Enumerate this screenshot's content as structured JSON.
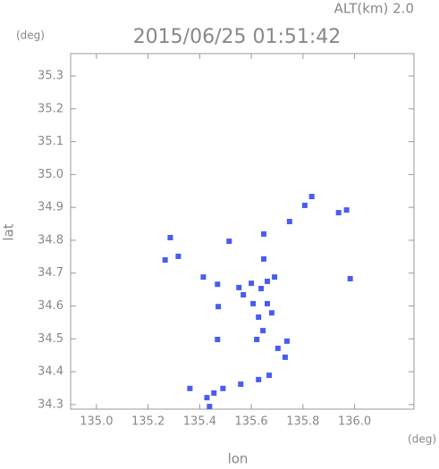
{
  "chart_data": {
    "type": "scatter",
    "title": "2015/06/25 01:51:42",
    "subtitle": "ALT(km) 2.0",
    "y_unit": "(deg)",
    "x_unit": "(deg)",
    "xlabel": "lon",
    "ylabel": "lat",
    "color": "#4a5cf0",
    "x": [
      135.286,
      135.266,
      135.317,
      135.414,
      135.469,
      135.472,
      135.469,
      135.552,
      135.569,
      135.6,
      135.638,
      135.662,
      135.69,
      135.607,
      135.628,
      135.645,
      135.621,
      135.679,
      135.662,
      135.738,
      135.731,
      135.669,
      135.628,
      135.559,
      135.49,
      135.455,
      135.362,
      135.428,
      135.438,
      135.514,
      135.648,
      135.648,
      135.748,
      135.807,
      135.834,
      135.938,
      135.969,
      135.983,
      135.703
    ],
    "values": [
      34.808,
      34.74,
      34.751,
      34.688,
      34.666,
      34.598,
      34.498,
      34.656,
      34.634,
      34.669,
      34.653,
      34.675,
      34.688,
      34.607,
      34.566,
      34.525,
      34.498,
      34.579,
      34.607,
      34.493,
      34.444,
      34.389,
      34.376,
      34.362,
      34.349,
      34.335,
      34.349,
      34.321,
      34.294,
      34.797,
      34.819,
      34.743,
      34.857,
      34.906,
      34.933,
      34.884,
      34.892,
      34.683,
      34.471
    ],
    "xlim": [
      134.9,
      136.23
    ],
    "ylim": [
      34.286,
      35.368
    ],
    "xticks": [
      {
        "value": 135.0,
        "label": "135.0"
      },
      135.2,
      135.4,
      135.6,
      135.8,
      {
        "value": 136.0,
        "label": "136.0"
      }
    ],
    "yticks": [
      {
        "value": 34.3,
        "label": "34.3"
      },
      34.4,
      34.5,
      34.6,
      34.7,
      34.8,
      34.9,
      {
        "value": 35.0,
        "label": "35.0"
      },
      35.1,
      35.2,
      35.3
    ],
    "grid": false
  }
}
